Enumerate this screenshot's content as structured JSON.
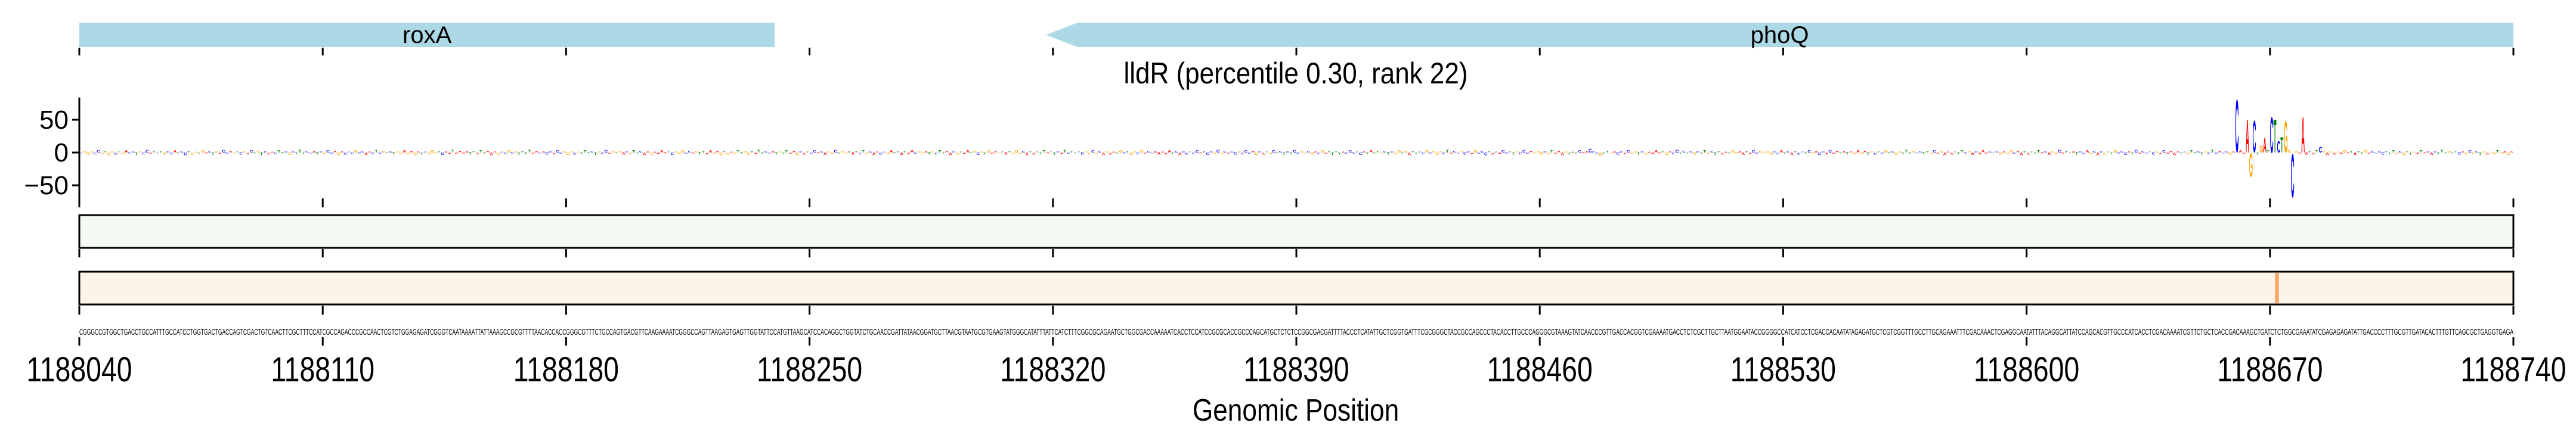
{
  "chart_data": {
    "type": "sequence_logo",
    "title": "lldR (percentile 0.30, rank 22)",
    "xlabel": "Genomic Position",
    "ylabel": "",
    "xlim": [
      1188040,
      1188740
    ],
    "ylim": [
      -70,
      84
    ],
    "xticks": [
      "1188040",
      "1188110",
      "1188180",
      "1188250",
      "1188320",
      "1188390",
      "1188460",
      "1188530",
      "1188600",
      "1188670",
      "1188740"
    ],
    "yticks": [
      {
        "value": 50,
        "label": "50"
      },
      {
        "value": 0,
        "label": "0"
      },
      {
        "value": -50,
        "label": "−50"
      }
    ],
    "genes": [
      {
        "name": "roxA",
        "start": 1188040,
        "end": 1188240,
        "strand": "+"
      },
      {
        "name": "phoQ",
        "start": 1188318,
        "end": 1188740,
        "strand": "-"
      }
    ],
    "sequence": "CGGGCCGTGGCTGACCTGCCATTTGCCATCCTGGTGACTGACCAGTCGACTGTCAACTTCGCTTTCCATCGCCAGACCCGCCAACTCGTCTGGAGAGATCGGGTCAATAAAATTATTAAAGCCGCGTTTTAACACCACCGGGCGTTTCTGCCAGTGACGTTCAAGAAAATCGGGCCAGTTAAGAGTGAGTTGGTATTCCATGTTAAGCATCCACAGGCTGGTATCTGCAACCGATTATAACGGATGCTTAACGTAATGCGTGAAGTATGGGCATATTTATTCATCTTTCGGCGCAGAATGCTGGCGACCAAAAATCACCTCCATCCGCGCACCGCCCAGCATGCTCTCTCCGGCGACGATTTTACCCTCATATTGCTCGGTGATTTCGCGGGCTACCGCCAGCCCTACACCTTGCCCAGGGCGTAAAGTATCAACCCGTTGACCACGGTCGAAAATGACCTCTCGCTTGCTTAATGGAATACCGGGGCCATCATCCTCGACCACAATATAGAGATGCTCGTCGGTTTGCCTTGCAGAAATTTCGACAAACTCGAGGCAATATTTACAGGCATTATCCAGCACGTTGCCCATCACCTCGACAAAATCGTTCTGCTCACCGACAAAGCTGATCTCTGGCGAAATATCGAGAGAGATATTGACCCCTTTGCGTTGATACACTTTGTTCAGCGCTGAGGTGAGA",
    "default_attribution": 3,
    "attributions": {
      "1188474": 6,
      "1188477": -5,
      "1188660": 83,
      "1188663": 52,
      "1188664": -37,
      "1188665": 50,
      "1188667": 11,
      "1188668": 23,
      "1188670": 56,
      "1188671": 52,
      "1188672": 18,
      "1188673": 24,
      "1188674": 49,
      "1188676": -68,
      "1188679": 56,
      "1188684": 9
    },
    "highlight_position": 1188672,
    "colors": {
      "A": "#ff0000",
      "C": "#0000ff",
      "G": "#ffa500",
      "T": "#008000",
      "gene": "#add8e6",
      "track1": "#f4f9f1",
      "track2": "#fef3e8",
      "highlight": "#f9a35c"
    }
  }
}
